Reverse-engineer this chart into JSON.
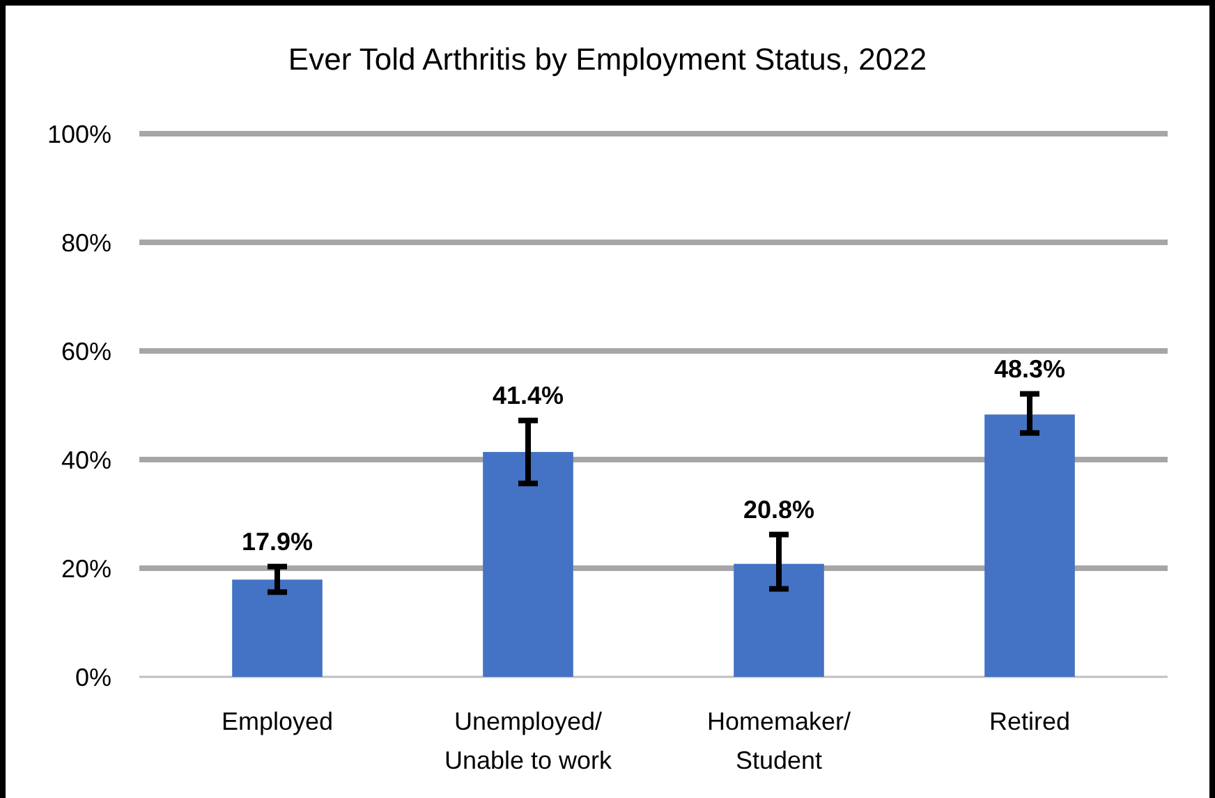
{
  "chart_data": {
    "type": "bar",
    "title": "Ever Told Arthritis by Employment Status, 2022",
    "categories": [
      "Employed",
      "Unemployed/ Unable to work",
      "Homemaker/ Student",
      "Retired"
    ],
    "values": [
      17.9,
      41.4,
      20.8,
      48.3
    ],
    "color": "#4472c4",
    "errors": [
      [
        15.6,
        20.3
      ],
      [
        35.6,
        47.2
      ],
      [
        16.2,
        26.2
      ],
      [
        44.9,
        52.1
      ]
    ],
    "value_labels": [
      "17.9%",
      "41.4%",
      "20.8%",
      "48.3%"
    ],
    "ylim": [
      0,
      100
    ],
    "yticks": [
      {
        "value": 0,
        "label": "0%"
      },
      {
        "value": 20,
        "label": "20%"
      },
      {
        "value": 40,
        "label": "40%"
      },
      {
        "value": 60,
        "label": "60%"
      },
      {
        "value": 80,
        "label": "80%"
      },
      {
        "value": 100,
        "label": "100%"
      }
    ],
    "grid": "y"
  }
}
